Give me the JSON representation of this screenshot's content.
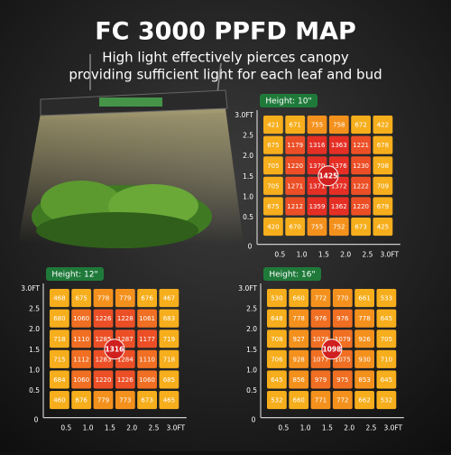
{
  "title": "FC 3000 PPFD MAP",
  "subtitle": [
    "High light effectively pierces canopy",
    "providing sufficient light for each leaf and bud"
  ],
  "maps": [
    {
      "label": "Height: 10\"",
      "peak": "1425",
      "origin": "0",
      "yticks": [
        "0.5",
        "1.0",
        "1.5",
        "2.0",
        "2.5",
        "3.0FT"
      ],
      "xticks": [
        "0.5",
        "1.0",
        "1.5",
        "2.0",
        "2.5",
        "3.0FT"
      ],
      "rows": [
        [
          "421",
          "671",
          "755",
          "758",
          "672",
          "422"
        ],
        [
          "675",
          "1179",
          "1316",
          "1363",
          "1221",
          "678"
        ],
        [
          "705",
          "1220",
          "1370",
          "1376",
          "1230",
          "708"
        ],
        [
          "705",
          "1271",
          "1371",
          "1372",
          "1222",
          "709"
        ],
        [
          "675",
          "1212",
          "1359",
          "1362",
          "1220",
          "679"
        ],
        [
          "420",
          "670",
          "755",
          "752",
          "673",
          "425"
        ]
      ]
    },
    {
      "label": "Height: 12\"",
      "peak": "1316",
      "origin": "0",
      "yticks": [
        "0.5",
        "1.0",
        "1.5",
        "2.0",
        "2.5",
        "3.0FT"
      ],
      "xticks": [
        "0.5",
        "1.0",
        "1.5",
        "2.0",
        "2.5",
        "3.0FT"
      ],
      "rows": [
        [
          "468",
          "675",
          "778",
          "779",
          "676",
          "467"
        ],
        [
          "680",
          "1060",
          "1226",
          "1228",
          "1061",
          "683"
        ],
        [
          "718",
          "1110",
          "1285",
          "1287",
          "1177",
          "719"
        ],
        [
          "715",
          "1112",
          "1283",
          "1284",
          "1110",
          "718"
        ],
        [
          "684",
          "1060",
          "1220",
          "1226",
          "1060",
          "685"
        ],
        [
          "460",
          "676",
          "779",
          "773",
          "673",
          "465"
        ]
      ]
    },
    {
      "label": "Height: 16\"",
      "peak": "1098",
      "origin": "0",
      "yticks": [
        "0.5",
        "1.0",
        "1.5",
        "2.0",
        "2.5",
        "3.0FT"
      ],
      "xticks": [
        "0.5",
        "1.0",
        "1.5",
        "2.0",
        "2.5",
        "3.0FT"
      ],
      "rows": [
        [
          "530",
          "660",
          "772",
          "770",
          "661",
          "533"
        ],
        [
          "648",
          "778",
          "976",
          "976",
          "778",
          "645"
        ],
        [
          "708",
          "927",
          "1078",
          "1079",
          "926",
          "705"
        ],
        [
          "706",
          "928",
          "1077",
          "1075",
          "930",
          "710"
        ],
        [
          "645",
          "856",
          "979",
          "975",
          "853",
          "645"
        ],
        [
          "532",
          "660",
          "771",
          "772",
          "662",
          "532"
        ]
      ]
    }
  ]
}
